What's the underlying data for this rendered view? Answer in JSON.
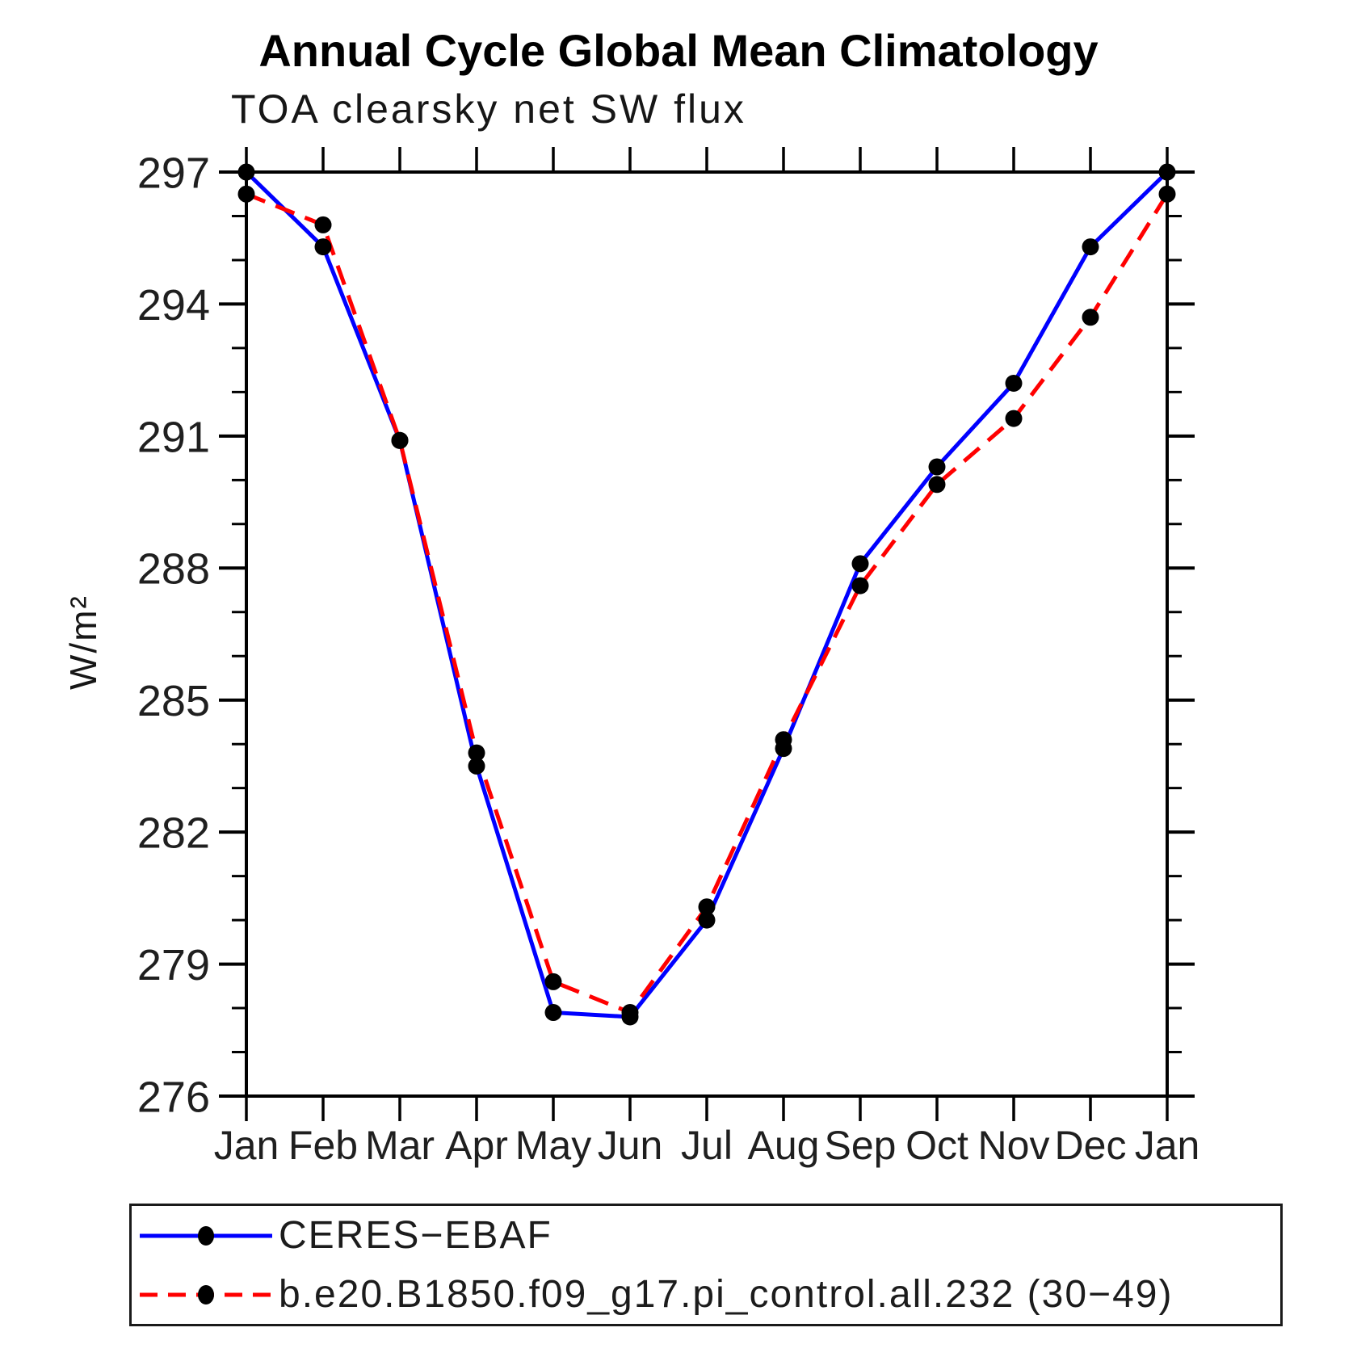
{
  "chart_data": {
    "type": "line",
    "title": "Annual Cycle Global Mean Climatology",
    "subtitle": "TOA clearsky net SW flux",
    "ylabel": "W/m²",
    "xlabel": "",
    "categories": [
      "Jan",
      "Feb",
      "Mar",
      "Apr",
      "May",
      "Jun",
      "Jul",
      "Aug",
      "Sep",
      "Oct",
      "Nov",
      "Dec",
      "Jan"
    ],
    "ylim": [
      276,
      297
    ],
    "y_major_step": 3,
    "y_minor_step": 1,
    "y_tick_labels": [
      "276",
      "279",
      "282",
      "285",
      "288",
      "291",
      "294",
      "297"
    ],
    "grid": false,
    "legend_position": "bottom-box",
    "axis_color": "#000000",
    "tick_label_color": "#1f1f1f",
    "marker_color": "#000000",
    "series": [
      {
        "name": "CERES−EBAF",
        "color": "#0000ff",
        "style": "solid",
        "marker": "circle",
        "values": [
          297.0,
          295.3,
          290.9,
          283.5,
          277.9,
          277.8,
          280.0,
          283.9,
          288.1,
          290.3,
          292.2,
          295.3,
          297.0
        ]
      },
      {
        "name": "b.e20.B1850.f09_g17.pi_control.all.232 (30−49)",
        "color": "#ff0000",
        "style": "dashed",
        "marker": "circle",
        "values": [
          296.5,
          295.8,
          290.9,
          283.8,
          278.6,
          277.9,
          280.3,
          284.1,
          287.6,
          289.9,
          291.4,
          293.7,
          296.5
        ]
      }
    ]
  }
}
